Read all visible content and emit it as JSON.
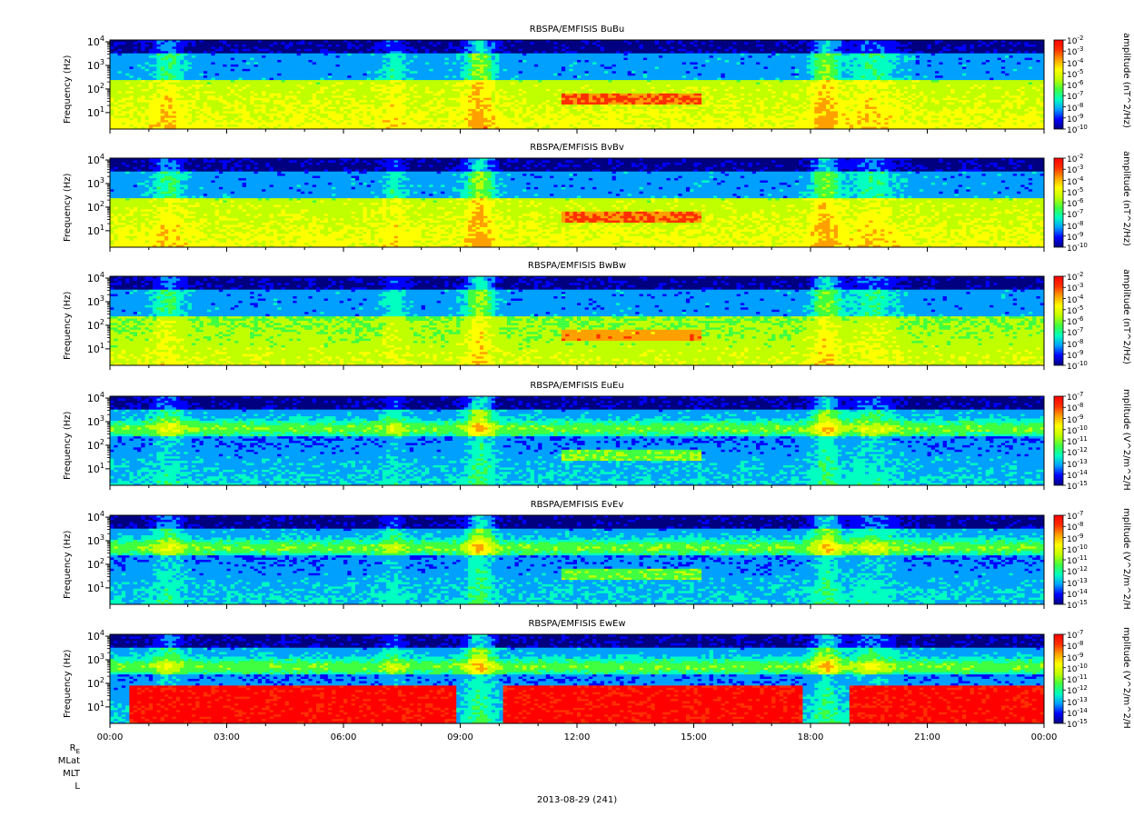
{
  "chart_data": [
    {
      "type": "heatmap",
      "title": "RBSPA/EMFISIS  BuBu",
      "ylabel": "Frequency (Hz)",
      "yscale": "log",
      "ylim": [
        2,
        12000
      ],
      "y_ticks": [
        {
          "base": "10",
          "exp": "1"
        },
        {
          "base": "10",
          "exp": "2"
        },
        {
          "base": "10",
          "exp": "3"
        },
        {
          "base": "10",
          "exp": "4"
        }
      ],
      "colorbar": {
        "label": "amplitude (nT^2/Hz)",
        "ticks": [
          "-2",
          "-3",
          "-4",
          "-5",
          "-6",
          "-7",
          "-8",
          "-9",
          "-10"
        ]
      },
      "band": 50,
      "lowlevel": 0.62,
      "hot": 0.0
    },
    {
      "type": "heatmap",
      "title": "RBSPA/EMFISIS  BvBv",
      "ylabel": "Frequency (Hz)",
      "yscale": "log",
      "ylim": [
        2,
        12000
      ],
      "y_ticks": [
        {
          "base": "10",
          "exp": "1"
        },
        {
          "base": "10",
          "exp": "2"
        },
        {
          "base": "10",
          "exp": "3"
        },
        {
          "base": "10",
          "exp": "4"
        }
      ],
      "colorbar": {
        "label": "amplitude (nT^2/Hz)",
        "ticks": [
          "-2",
          "-3",
          "-4",
          "-5",
          "-6",
          "-7",
          "-8",
          "-9",
          "-10"
        ]
      },
      "band": 50,
      "lowlevel": 0.62,
      "hot": 0.0
    },
    {
      "type": "heatmap",
      "title": "RBSPA/EMFISIS  BwBw",
      "ylabel": "Frequency (Hz)",
      "yscale": "log",
      "ylim": [
        2,
        12000
      ],
      "y_ticks": [
        {
          "base": "10",
          "exp": "1"
        },
        {
          "base": "10",
          "exp": "2"
        },
        {
          "base": "10",
          "exp": "3"
        },
        {
          "base": "10",
          "exp": "4"
        }
      ],
      "colorbar": {
        "label": "amplitude (nT^2/Hz)",
        "ticks": [
          "-2",
          "-3",
          "-4",
          "-5",
          "-6",
          "-7",
          "-8",
          "-9",
          "-10"
        ]
      },
      "band": 50,
      "lowlevel": 0.56,
      "hot": 0.0
    },
    {
      "type": "heatmap",
      "title": "RBSPA/EMFISIS  EuEu",
      "ylabel": "Frequency (Hz)",
      "yscale": "log",
      "ylim": [
        2,
        12000
      ],
      "y_ticks": [
        {
          "base": "10",
          "exp": "1"
        },
        {
          "base": "10",
          "exp": "2"
        },
        {
          "base": "10",
          "exp": "3"
        },
        {
          "base": "10",
          "exp": "4"
        }
      ],
      "colorbar": {
        "label": "mplitude (V^2/m^2/H",
        "ticks": [
          "-7",
          "-8",
          "-9",
          "-10",
          "-11",
          "-12",
          "-13",
          "-14",
          "-15"
        ]
      },
      "band": 500,
      "lowlevel": 0.25,
      "hot": 0.0
    },
    {
      "type": "heatmap",
      "title": "RBSPA/EMFISIS  EvEv",
      "ylabel": "Frequency (Hz)",
      "yscale": "log",
      "ylim": [
        2,
        12000
      ],
      "y_ticks": [
        {
          "base": "10",
          "exp": "1"
        },
        {
          "base": "10",
          "exp": "2"
        },
        {
          "base": "10",
          "exp": "3"
        },
        {
          "base": "10",
          "exp": "4"
        }
      ],
      "colorbar": {
        "label": "mplitude (V^2/m^2/H",
        "ticks": [
          "-7",
          "-8",
          "-9",
          "-10",
          "-11",
          "-12",
          "-13",
          "-14",
          "-15"
        ]
      },
      "band": 500,
      "lowlevel": 0.25,
      "hot": 0.0
    },
    {
      "type": "heatmap",
      "title": "RBSPA/EMFISIS  EwEw",
      "ylabel": "Frequency (Hz)",
      "yscale": "log",
      "ylim": [
        2,
        12000
      ],
      "y_ticks": [
        {
          "base": "10",
          "exp": "1"
        },
        {
          "base": "10",
          "exp": "2"
        },
        {
          "base": "10",
          "exp": "3"
        },
        {
          "base": "10",
          "exp": "4"
        }
      ],
      "colorbar": {
        "label": "mplitude (V^2/m^2/H",
        "ticks": [
          "-7",
          "-8",
          "-9",
          "-10",
          "-11",
          "-12",
          "-13",
          "-14",
          "-15"
        ]
      },
      "band": 500,
      "lowlevel": 0.25,
      "hot": 1.0
    }
  ],
  "x_axis": {
    "ticks": [
      "00:00",
      "03:00",
      "06:00",
      "09:00",
      "12:00",
      "15:00",
      "18:00",
      "21:00",
      "00:00"
    ],
    "xlim_hours": [
      0,
      24
    ]
  },
  "ephemeris_labels": [
    "R",
    "MLat",
    "MLT",
    "L"
  ],
  "ephemeris_sub": "E",
  "date_label": "2013-08-29 (241)",
  "colorbar_base": "10",
  "colors": {
    "scale": [
      "#000080",
      "#0000ff",
      "#00a0ff",
      "#00ffc0",
      "#40ff40",
      "#c0ff00",
      "#ffff00",
      "#ffa000",
      "#ff3000",
      "#ff0000"
    ],
    "background": "#000000"
  }
}
